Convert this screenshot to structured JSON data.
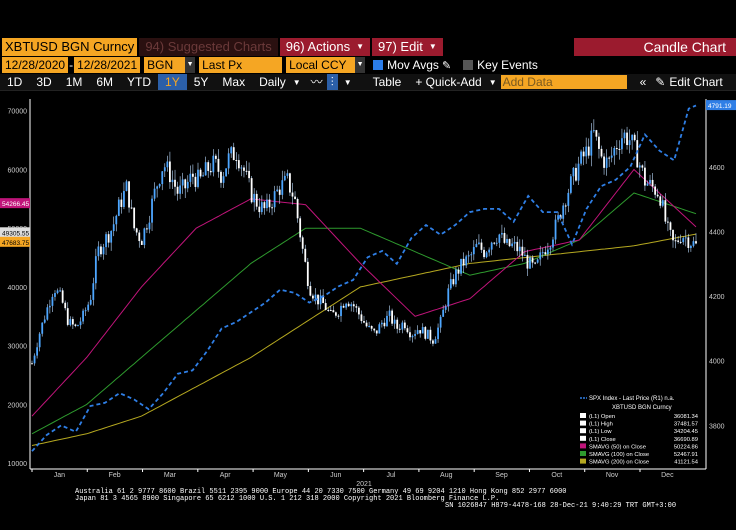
{
  "toolbar1": {
    "ticker": "XBTUSD BGN Curncy",
    "suggested": "94) Suggested Charts",
    "actions": "96) Actions",
    "edit": "97) Edit",
    "title": "Candle Chart"
  },
  "toolbar2": {
    "start_date": "12/28/2020",
    "end_date": "12/28/2021",
    "source": "BGN",
    "field": "Last Px",
    "currency": "Local CCY",
    "mov_avgs": "Mov Avgs",
    "key_events": "Key Events"
  },
  "toolbar3": {
    "periods": [
      "1D",
      "3D",
      "1M",
      "6M",
      "YTD",
      "1Y",
      "5Y",
      "Max"
    ],
    "selected_period": "1Y",
    "frequency": "Daily",
    "table": "Table",
    "quick_add": "+ Quick-Add",
    "add_data_placeholder": "Add Data",
    "edit_chart": "Edit Chart"
  },
  "colors": {
    "candle": "#4da6ff",
    "spx": "#2f7fe6",
    "sma50": "#c0147a",
    "sma100": "#2e9a2e",
    "sma200": "#b5a820",
    "accent": "#f5a623",
    "brand": "#9b1b2e"
  },
  "chart_data": {
    "type": "line",
    "x_labels": [
      "Jan",
      "Feb",
      "Mar",
      "Apr",
      "May",
      "Jun",
      "Jul",
      "Aug",
      "Sep",
      "Oct",
      "Nov",
      "Dec"
    ],
    "year_label": "2021",
    "left_axis": {
      "ticks": [
        10000,
        20000,
        30000,
        40000,
        50000,
        60000,
        70000
      ],
      "ylim": [
        9000,
        72000
      ]
    },
    "right_axis": {
      "ticks": [
        3800,
        4000,
        4200,
        4400,
        4600
      ],
      "ylim": [
        3665,
        4810
      ]
    },
    "series": [
      {
        "name": "XBTUSD BGN Curncy",
        "axis": "left",
        "x": [
          0,
          4,
          8,
          12,
          16,
          20,
          24,
          28,
          32,
          36,
          40,
          44,
          48,
          52,
          56,
          60,
          64,
          68,
          72,
          76,
          80,
          84,
          88,
          92,
          96,
          100,
          104,
          108,
          112,
          116,
          120,
          124,
          128,
          132,
          136,
          140,
          144,
          148,
          152,
          156,
          160,
          164,
          168,
          172,
          176,
          180,
          184,
          188,
          192,
          196,
          200,
          204,
          208,
          212,
          216,
          220,
          224,
          228,
          232,
          236,
          240,
          244,
          248,
          252,
          256,
          260,
          264,
          268,
          272,
          276,
          280,
          284,
          288,
          292,
          296,
          300,
          304,
          308,
          312,
          316,
          320,
          324,
          328,
          332,
          336,
          340,
          344,
          348,
          352,
          356,
          360,
          364
        ],
        "values": [
          27000,
          32000,
          36000,
          40000,
          38000,
          34000,
          33000,
          35000,
          38000,
          46000,
          48000,
          50000,
          54000,
          57000,
          50000,
          48000,
          52000,
          57000,
          61000,
          59000,
          56000,
          57000,
          59000,
          58000,
          60000,
          61000,
          59000,
          62000,
          63000,
          60000,
          56000,
          54000,
          53000,
          55000,
          57000,
          58000,
          55000,
          47000,
          40000,
          38000,
          37000,
          35000,
          36000,
          38000,
          37000,
          35000,
          33000,
          32000,
          34000,
          35000,
          33000,
          34000,
          32000,
          33000,
          32000,
          31000,
          34000,
          39000,
          42000,
          44000,
          45000,
          47000,
          46000,
          48000,
          49000,
          47000,
          47000,
          46000,
          44000,
          43000,
          46000,
          48000,
          51000,
          55000,
          58000,
          61000,
          63000,
          66000,
          62000,
          61000,
          64000,
          66000,
          65000,
          62000,
          58000,
          57000,
          56000,
          50000,
          47000,
          49000,
          48000,
          47000
        ]
      },
      {
        "name": "SPX Index - Last Price (R1)",
        "axis": "right",
        "x": [
          0,
          8,
          16,
          24,
          32,
          40,
          48,
          56,
          64,
          72,
          80,
          88,
          96,
          104,
          112,
          120,
          128,
          136,
          144,
          152,
          160,
          168,
          176,
          184,
          192,
          200,
          208,
          216,
          224,
          232,
          240,
          248,
          256,
          264,
          272,
          280,
          288,
          296,
          304,
          312,
          320,
          328,
          336,
          344,
          352,
          360,
          364
        ],
        "values": [
          3720,
          3770,
          3800,
          3780,
          3860,
          3870,
          3900,
          3880,
          3850,
          3900,
          3960,
          3970,
          4030,
          4100,
          4120,
          4150,
          4180,
          4220,
          4210,
          4180,
          4200,
          4230,
          4250,
          4320,
          4340,
          4300,
          4380,
          4420,
          4390,
          4420,
          4460,
          4470,
          4470,
          4430,
          4510,
          4460,
          4460,
          4360,
          4470,
          4540,
          4560,
          4600,
          4700,
          4650,
          4620,
          4780,
          4790
        ]
      },
      {
        "name": "SMAVG (50) on Close",
        "axis": "left",
        "x": [
          0,
          30,
          60,
          90,
          120,
          150,
          180,
          210,
          240,
          270,
          300,
          330,
          364
        ],
        "values": [
          18000,
          28000,
          40000,
          50000,
          55000,
          54000,
          44000,
          35000,
          38000,
          46000,
          48000,
          60000,
          50224.86
        ]
      },
      {
        "name": "SMAVG (100) on Close",
        "axis": "left",
        "x": [
          0,
          30,
          60,
          90,
          120,
          150,
          180,
          210,
          240,
          270,
          300,
          330,
          364
        ],
        "values": [
          15000,
          20000,
          28000,
          36000,
          44000,
          50000,
          50000,
          46000,
          42000,
          44000,
          48000,
          56000,
          52467.91
        ]
      },
      {
        "name": "SMAVG (200) on Close",
        "axis": "left",
        "x": [
          0,
          30,
          60,
          90,
          120,
          150,
          180,
          210,
          240,
          270,
          300,
          330,
          364
        ],
        "values": [
          13000,
          15000,
          18000,
          23000,
          28000,
          34000,
          40000,
          42000,
          44000,
          45000,
          46000,
          47000,
          49000
        ]
      }
    ],
    "price_labels": [
      "4791.19",
      "54266.45",
      "49305.55",
      "47683.75"
    ],
    "legend": {
      "position": "bottom-right",
      "title": "SPX Index - Last Price (R1) n.a.",
      "subtitle": "XBTUSD BGN Curncy",
      "rows": [
        {
          "label": "(L1) Open",
          "value": "36081.34",
          "color": "#ffffff"
        },
        {
          "label": "(L1) High",
          "value": "37481.57",
          "color": "#ffffff"
        },
        {
          "label": "(L1) Low",
          "value": "34204.45",
          "color": "#ffffff"
        },
        {
          "label": "(L1) Close",
          "value": "36690.89",
          "color": "#ffffff"
        },
        {
          "label": "SMAVG (50)   on Close",
          "value": "50224.86",
          "color": "#c0147a"
        },
        {
          "label": "SMAVG (100)  on Close",
          "value": "52467.91",
          "color": "#2e9a2e"
        },
        {
          "label": "SMAVG (200)  on Close",
          "value": "41121.54",
          "color": "#b5a820"
        }
      ]
    }
  },
  "footer": {
    "line1": "Australia 61 2 9777 8600 Brazil 5511 2395 9000 Europe 44 20 7330 7500 Germany 49 69 9204 1210 Hong Kong 852 2977 6000",
    "line2": "Japan 81 3 4565 8900        Singapore 65 6212 1000        U.S. 1 212 318 2000        Copyright 2021 Bloomberg Finance L.P.",
    "line3": "SN 1026847 H879-4478-168 28-Dec-21  9:40:29 TRT  GMT+3:00"
  }
}
